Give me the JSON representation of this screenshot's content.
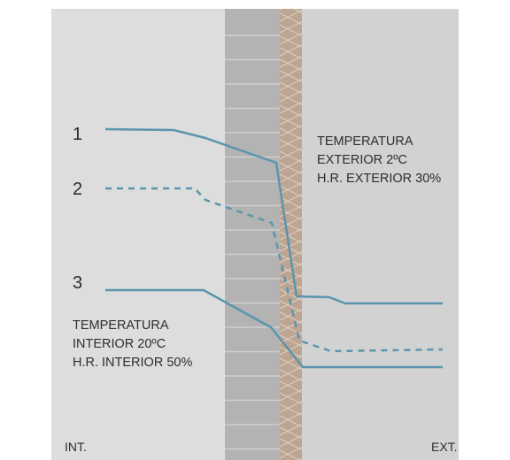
{
  "diagram": {
    "colors": {
      "interior_bg": "#dddddd",
      "exterior_bg": "#d2d2d2",
      "brick": "#b3b3b3",
      "brick_joint": "#cfcfcf",
      "insulation": "#bca592",
      "insulation_hatch": "#e3d6c9",
      "curve": "#5b95ad"
    },
    "curve_labels": [
      "1",
      "2",
      "3"
    ],
    "exterior_note": [
      "TEMPERATURA",
      "EXTERIOR 2ºC",
      "H.R. EXTERIOR 30%"
    ],
    "interior_note": [
      "TEMPERATURA",
      "INTERIOR 20ºC",
      "H.R. INTERIOR 50%"
    ],
    "side_labels": {
      "left": "INT.",
      "right": "EXT."
    }
  }
}
